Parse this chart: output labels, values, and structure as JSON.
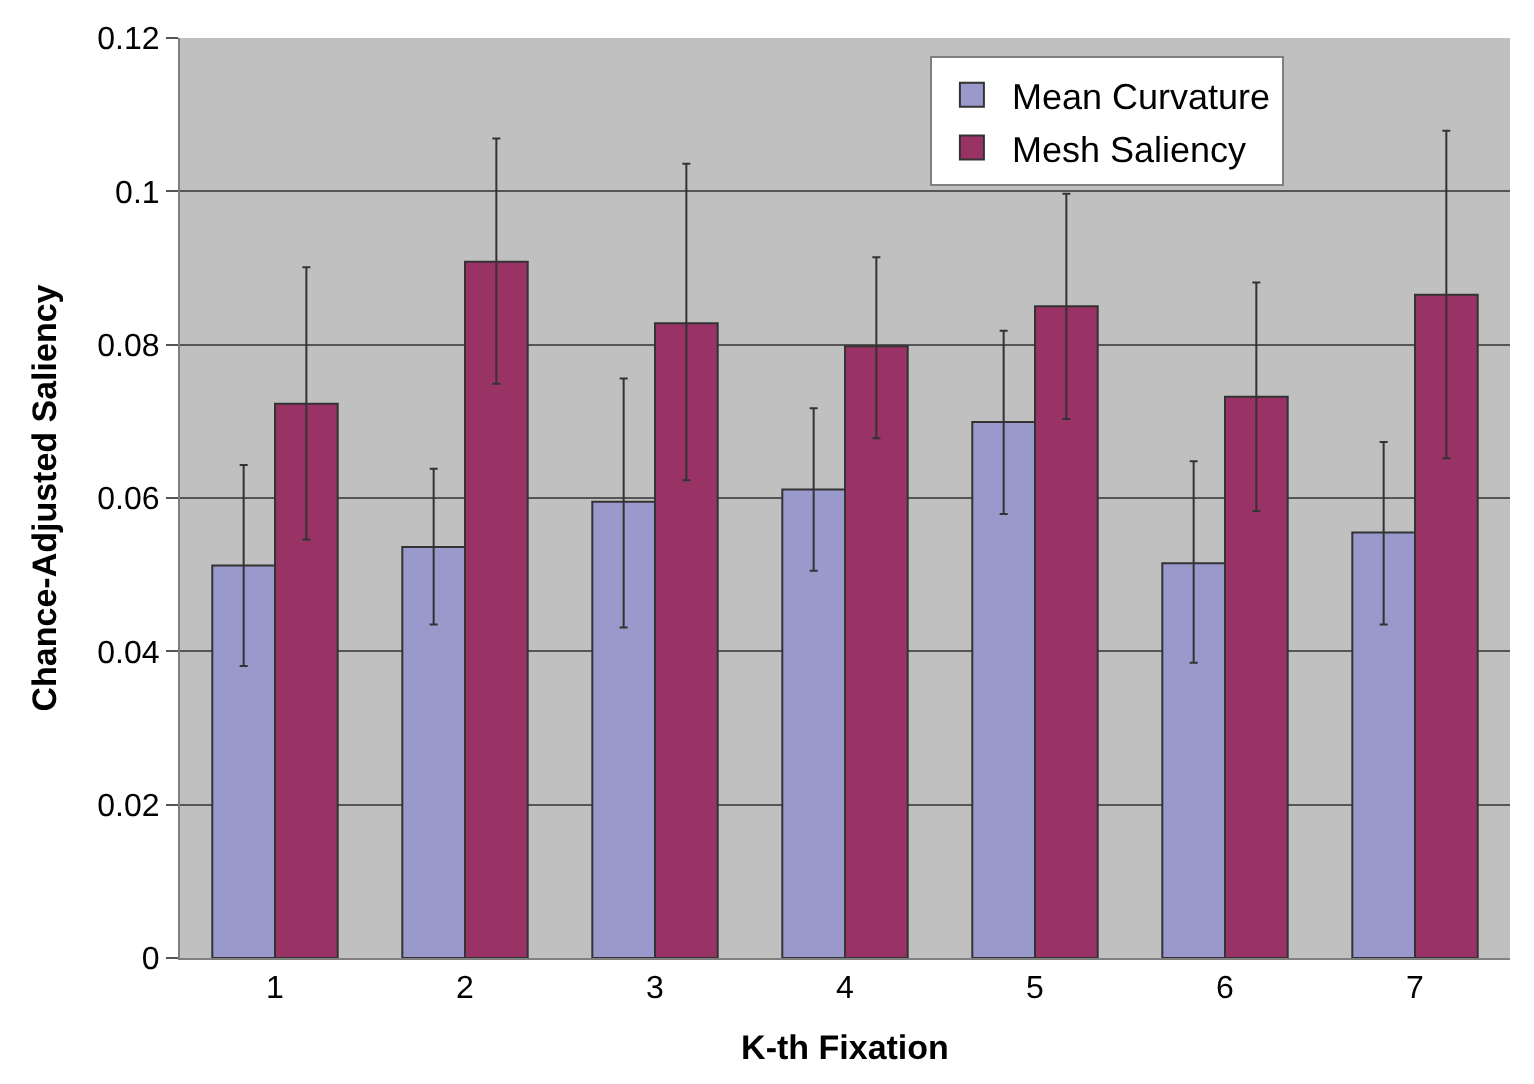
{
  "chart_data": {
    "type": "bar",
    "xlabel": "K-th Fixation",
    "ylabel": "Chance-Adjusted Saliency",
    "categories": [
      "1",
      "2",
      "3",
      "4",
      "5",
      "6",
      "7"
    ],
    "series": [
      {
        "name": "Mean Curvature",
        "color": "#9999cc",
        "values": [
          0.0512,
          0.0536,
          0.0595,
          0.0611,
          0.0699,
          0.0515,
          0.0555
        ],
        "errors": [
          [
            0.0381,
            0.0643
          ],
          [
            0.0435,
            0.0638
          ],
          [
            0.0431,
            0.0756
          ],
          [
            0.0505,
            0.0717
          ],
          [
            0.0579,
            0.0818
          ],
          [
            0.0385,
            0.0648
          ],
          [
            0.0435,
            0.0673
          ]
        ]
      },
      {
        "name": "Mesh Saliency",
        "color": "#993366",
        "values": [
          0.0723,
          0.0908,
          0.0828,
          0.0798,
          0.085,
          0.0732,
          0.0865
        ],
        "errors": [
          [
            0.0546,
            0.0901
          ],
          [
            0.0749,
            0.1069
          ],
          [
            0.0623,
            0.1036
          ],
          [
            0.0678,
            0.0914
          ],
          [
            0.0703,
            0.0997
          ],
          [
            0.0583,
            0.0881
          ],
          [
            0.0652,
            0.1079
          ]
        ]
      }
    ],
    "ylim": [
      0,
      0.12
    ],
    "yticks": [
      0,
      0.02,
      0.04,
      0.06,
      0.08,
      0.1,
      0.12
    ],
    "grid": "y",
    "legend": "top right"
  }
}
